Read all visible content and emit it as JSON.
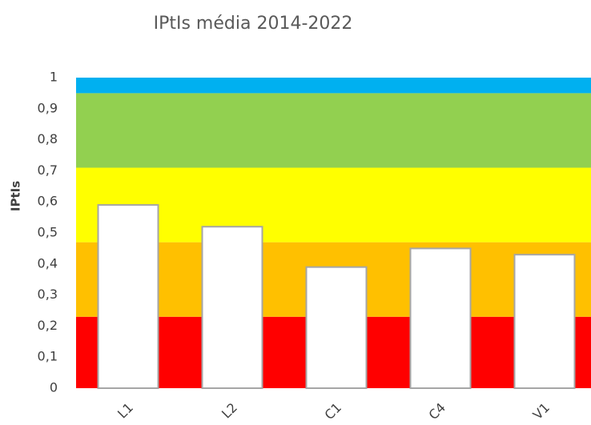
{
  "chart_data": {
    "type": "bar",
    "title": "IPtIs média 2014-2022",
    "y_label": "IPtIs",
    "categories": [
      "L1",
      "L2",
      "C1",
      "C4",
      "V1"
    ],
    "values": [
      0.59,
      0.52,
      0.39,
      0.45,
      0.43
    ],
    "color": "#ffffff",
    "edge_color": "#a6a6a6",
    "ylim": [
      0,
      1
    ],
    "yticks": [
      0,
      {
        "value": 0.1,
        "label": "0,1"
      },
      {
        "value": 0.2,
        "label": "0,2"
      },
      {
        "value": 0.3,
        "label": "0,3"
      },
      {
        "value": 0.4,
        "label": "0,4"
      },
      {
        "value": 0.5,
        "label": "0,5"
      },
      {
        "value": 0.6,
        "label": "0,6"
      },
      {
        "value": 0.7,
        "label": "0,7"
      },
      {
        "value": 0.8,
        "label": "0,8"
      },
      {
        "value": 0.9,
        "label": "0,9"
      },
      1
    ],
    "bands": [
      {
        "from": 0,
        "to": 0.23,
        "color": "#ff0000"
      },
      {
        "from": 0.23,
        "to": 0.47,
        "color": "#ffc000"
      },
      {
        "from": 0.47,
        "to": 0.71,
        "color": "#ffff00"
      },
      {
        "from": 0.71,
        "to": 0.95,
        "color": "#92d050"
      },
      {
        "from": 0.95,
        "to": 1,
        "color": "#00b0f0"
      }
    ]
  }
}
